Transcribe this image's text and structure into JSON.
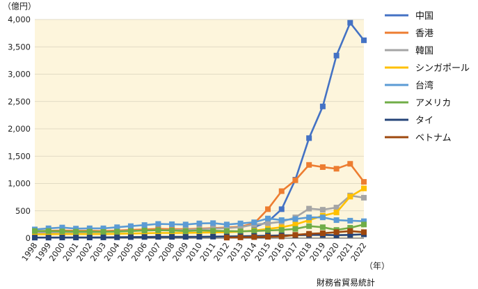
{
  "chart_data": {
    "type": "line",
    "ylabel": "（億円）",
    "xlabel": "（年）",
    "source": "財務省貿易統計",
    "x": [
      1998,
      1999,
      2000,
      2001,
      2002,
      2003,
      2004,
      2005,
      2006,
      2007,
      2008,
      2009,
      2010,
      2011,
      2012,
      2013,
      2014,
      2015,
      2016,
      2017,
      2018,
      2019,
      2020,
      2021,
      2022
    ],
    "x_tick_labels": [
      "1998",
      "1999",
      "2000",
      "2001",
      "2002",
      "2003",
      "2004",
      "2005",
      "2006",
      "2007",
      "2008",
      "2009",
      "2010",
      "2011",
      "2012",
      "2013",
      "2014",
      "2015",
      "2016",
      "2017",
      "2018",
      "2019",
      "2020",
      "2021",
      "2022"
    ],
    "ylim": [
      0,
      4000
    ],
    "y_ticks": [
      0,
      500,
      1000,
      1500,
      2000,
      2500,
      3000,
      3500,
      4000
    ],
    "y_tick_labels": [
      "0",
      "500",
      "1,000",
      "1,500",
      "2,000",
      "2,500",
      "3,000",
      "3,500",
      "4,000"
    ],
    "grid": "horizontal",
    "legend_position": "right",
    "plot_background": "#fdf5dc",
    "series": [
      {
        "name": "中国",
        "color": "#4472c4",
        "values": [
          null,
          null,
          null,
          null,
          null,
          null,
          null,
          null,
          null,
          null,
          null,
          null,
          null,
          null,
          null,
          null,
          200,
          300,
          530,
          1070,
          1830,
          2410,
          3340,
          3940,
          3620
        ]
      },
      {
        "name": "香港",
        "color": "#ed7d31",
        "values": [
          130,
          135,
          140,
          135,
          135,
          130,
          140,
          150,
          160,
          170,
          165,
          165,
          175,
          185,
          195,
          210,
          270,
          530,
          860,
          1060,
          1340,
          1300,
          1270,
          1360,
          1030
        ]
      },
      {
        "name": "韓国",
        "color": "#a5a5a5",
        "values": [
          100,
          105,
          110,
          110,
          110,
          115,
          125,
          135,
          140,
          145,
          145,
          150,
          165,
          175,
          185,
          200,
          250,
          270,
          300,
          380,
          540,
          520,
          560,
          780,
          740
        ]
      },
      {
        "name": "シンガポール",
        "color": "#ffc000",
        "values": [
          70,
          72,
          75,
          75,
          75,
          75,
          80,
          85,
          90,
          95,
          95,
          95,
          100,
          105,
          110,
          120,
          140,
          170,
          200,
          250,
          330,
          410,
          470,
          760,
          910
        ]
      },
      {
        "name": "台湾",
        "color": "#5b9bd5",
        "values": [
          160,
          180,
          195,
          175,
          180,
          180,
          200,
          220,
          240,
          260,
          255,
          250,
          270,
          275,
          250,
          270,
          290,
          360,
          330,
          350,
          380,
          380,
          330,
          320,
          310
        ]
      },
      {
        "name": "アメリカ",
        "color": "#70ad47",
        "values": [
          130,
          130,
          125,
          120,
          120,
          115,
          120,
          130,
          140,
          145,
          140,
          130,
          140,
          135,
          130,
          125,
          130,
          140,
          150,
          170,
          220,
          200,
          150,
          190,
          250
        ]
      },
      {
        "name": "タイ",
        "color": "#264478",
        "values": [
          10,
          10,
          12,
          12,
          12,
          14,
          16,
          20,
          22,
          24,
          24,
          24,
          26,
          28,
          30,
          35,
          40,
          45,
          50,
          55,
          60,
          60,
          55,
          60,
          70
        ]
      },
      {
        "name": "ベトナム",
        "color": "#9e480e",
        "values": [
          null,
          null,
          null,
          null,
          null,
          null,
          null,
          null,
          null,
          null,
          null,
          null,
          null,
          null,
          10,
          15,
          20,
          25,
          30,
          60,
          80,
          90,
          110,
          130,
          110
        ]
      }
    ]
  }
}
